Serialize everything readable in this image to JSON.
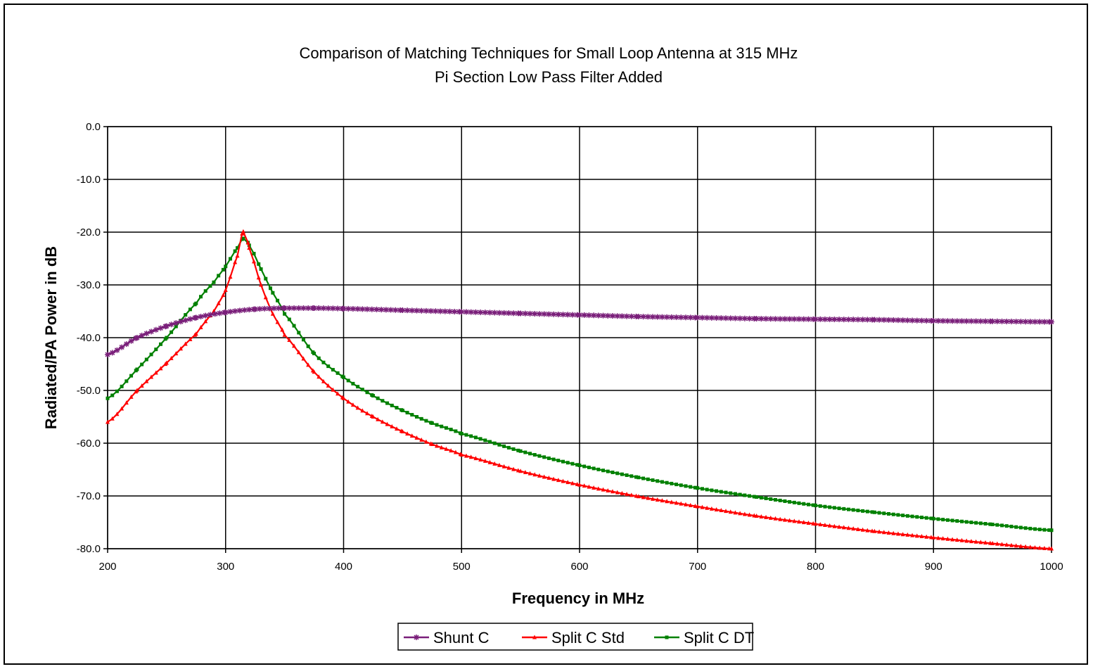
{
  "chart_data": {
    "type": "line",
    "title": "Comparison of Matching Techniques for Small Loop Antenna at 315 MHz",
    "subtitle": "Pi Section Low Pass Filter Added",
    "xlabel": "Frequency in MHz",
    "ylabel": "Radiated/PA Power in dB",
    "xlim": [
      200,
      1000
    ],
    "ylim": [
      -80,
      0
    ],
    "x_ticks": [
      200,
      300,
      400,
      500,
      600,
      700,
      800,
      900,
      1000
    ],
    "x_tick_labels": [
      "200",
      "300",
      "400",
      "500",
      "600",
      "700",
      "800",
      "900",
      "1000"
    ],
    "y_ticks": [
      0,
      -10,
      -20,
      -30,
      -40,
      -50,
      -60,
      -70,
      -80
    ],
    "y_tick_labels": [
      "0.0",
      "-10.0",
      "-20.0",
      "-30.0",
      "-40.0",
      "-50.0",
      "-60.0",
      "-70.0",
      "-80.0"
    ],
    "grid": true,
    "legend_position": "bottom-center",
    "series": [
      {
        "name": "Shunt C",
        "color": "#7a1f7a",
        "marker": "star",
        "x": [
          200,
          225,
          250,
          275,
          300,
          325,
          350,
          375,
          400,
          450,
          500,
          550,
          600,
          650,
          700,
          750,
          800,
          850,
          900,
          950,
          1000
        ],
        "y": [
          -43.2,
          -40.0,
          -37.8,
          -36.2,
          -35.2,
          -34.6,
          -34.4,
          -34.4,
          -34.5,
          -34.8,
          -35.1,
          -35.4,
          -35.7,
          -36.0,
          -36.2,
          -36.4,
          -36.5,
          -36.6,
          -36.8,
          -36.9,
          -37.0
        ]
      },
      {
        "name": "Split C Std",
        "color": "#ff0000",
        "marker": "triangle",
        "x": [
          200,
          225,
          250,
          275,
          290,
          300,
          310,
          315,
          320,
          330,
          340,
          350,
          375,
          400,
          425,
          450,
          475,
          500,
          550,
          600,
          650,
          700,
          750,
          800,
          850,
          900,
          950,
          1000
        ],
        "y": [
          -56.0,
          -50.0,
          -44.8,
          -39.3,
          -35.0,
          -31.0,
          -24.5,
          -19.9,
          -23.0,
          -30.0,
          -35.5,
          -39.5,
          -46.5,
          -51.5,
          -55.0,
          -57.8,
          -60.2,
          -62.2,
          -65.3,
          -67.9,
          -70.1,
          -72.0,
          -73.8,
          -75.3,
          -76.7,
          -77.9,
          -79.0,
          -80.0
        ]
      },
      {
        "name": "Split C DT",
        "color": "#008000",
        "marker": "square",
        "x": [
          200,
          225,
          250,
          275,
          290,
          300,
          310,
          315,
          320,
          330,
          340,
          350,
          375,
          400,
          425,
          450,
          475,
          500,
          550,
          600,
          650,
          700,
          750,
          800,
          850,
          900,
          950,
          1000
        ],
        "y": [
          -51.5,
          -46.0,
          -40.0,
          -33.5,
          -29.5,
          -26.5,
          -23.0,
          -21.2,
          -22.5,
          -27.0,
          -31.5,
          -35.5,
          -43.0,
          -47.5,
          -51.0,
          -53.8,
          -56.2,
          -58.2,
          -61.5,
          -64.2,
          -66.5,
          -68.5,
          -70.2,
          -71.8,
          -73.1,
          -74.3,
          -75.4,
          -76.5
        ]
      }
    ]
  }
}
